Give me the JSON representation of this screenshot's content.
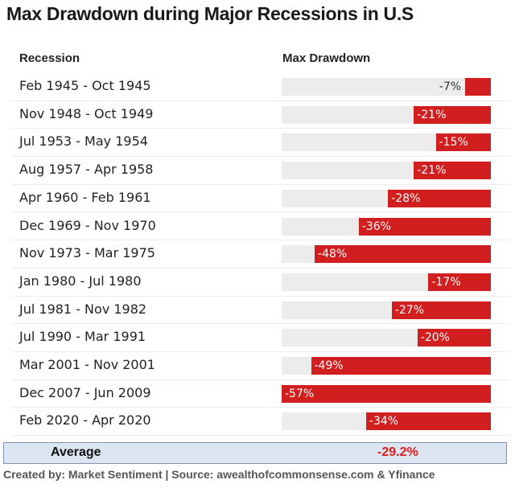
{
  "chart_data": {
    "type": "bar",
    "orientation": "horizontal",
    "title": "Max Drawdown during Major Recessions in U.S",
    "column_headers": [
      "Recession",
      "Max Drawdown"
    ],
    "categories": [
      "Feb 1945 - Oct 1945",
      "Nov 1948 - Oct 1949",
      "Jul 1953 - May 1954",
      "Aug 1957 - Apr 1958",
      "Apr 1960 - Feb 1961",
      "Dec 1969 - Nov 1970",
      "Nov 1973 - Mar 1975",
      "Jan 1980 - Jul 1980",
      "Jul 1981 - Nov 1982",
      "Jul 1990 - Mar 1991",
      "Mar 2001 - Nov 2001",
      "Dec 2007 - Jun 2009",
      "Feb 2020 - Apr 2020"
    ],
    "values": [
      -7,
      -21,
      -15,
      -21,
      -28,
      -36,
      -48,
      -17,
      -27,
      -20,
      -49,
      -57,
      -34
    ],
    "value_labels": [
      "-7%",
      "-21%",
      "-15%",
      "-21%",
      "-28%",
      "-36%",
      "-48%",
      "-17%",
      "-27%",
      "-20%",
      "-49%",
      "-57%",
      "-34%"
    ],
    "xlim": [
      -57,
      0
    ],
    "bar_color": "#d11f1f",
    "track_color": "#ececec",
    "average": {
      "label": "Average",
      "value": "-29.2%"
    },
    "footer": "Created by: Market Sentiment | Source: awealthofcommonsense.com & Yfinance"
  }
}
